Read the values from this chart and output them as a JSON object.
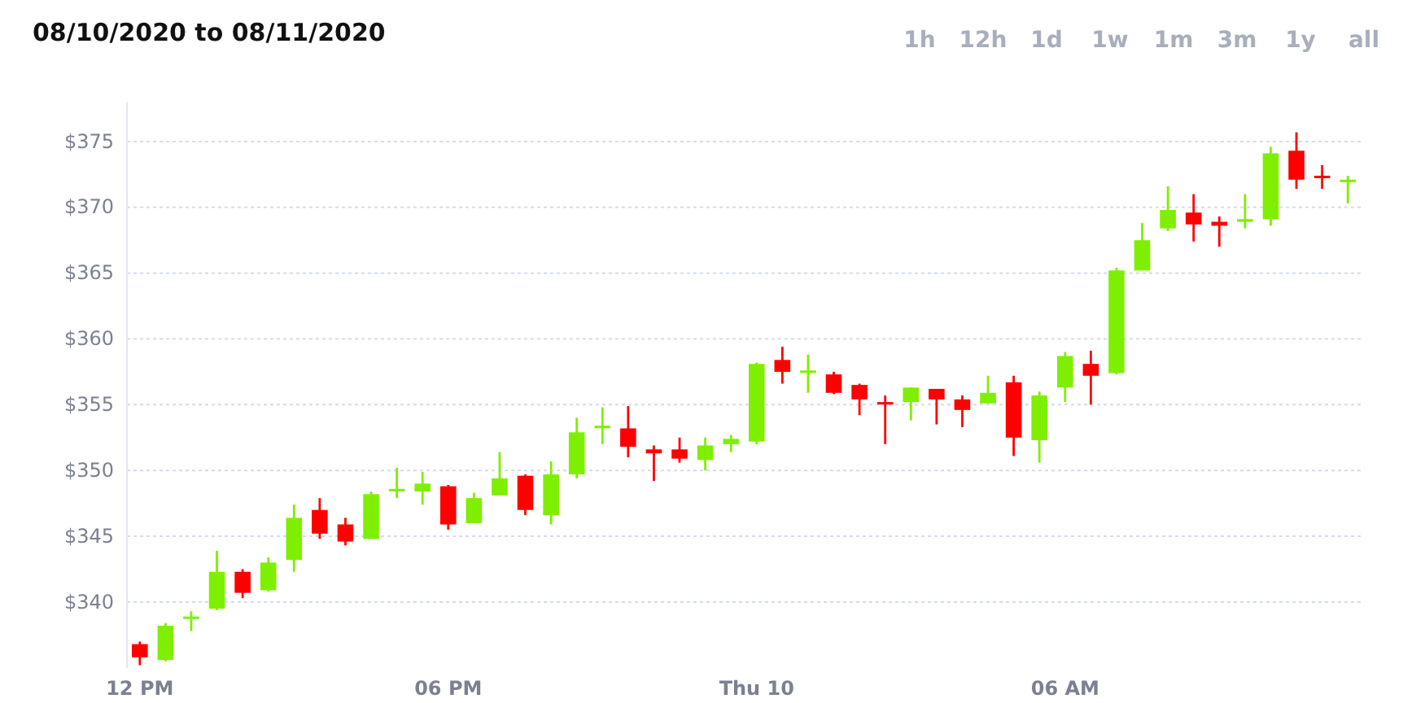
{
  "chart_data": {
    "type": "candlestick",
    "title": "08/10/2020 to 08/11/2020",
    "annotations": [
      "1h",
      "12h",
      "1d",
      "1w",
      "1m",
      "3m",
      "1y",
      "all"
    ],
    "x": [
      "2020-08-10T12:00",
      "2020-08-10T12:30",
      "2020-08-10T13:00",
      "2020-08-10T13:30",
      "2020-08-10T14:00",
      "2020-08-10T14:30",
      "2020-08-10T15:00",
      "2020-08-10T15:30",
      "2020-08-10T16:00",
      "2020-08-10T16:30",
      "2020-08-10T17:00",
      "2020-08-10T17:30",
      "2020-08-10T18:00",
      "2020-08-10T18:30",
      "2020-08-10T19:00",
      "2020-08-10T19:30",
      "2020-08-10T20:00",
      "2020-08-10T20:30",
      "2020-08-10T21:00",
      "2020-08-10T21:30",
      "2020-08-10T22:00",
      "2020-08-10T22:30",
      "2020-08-10T23:00",
      "2020-08-10T23:30",
      "2020-08-11T00:00",
      "2020-08-11T00:30",
      "2020-08-11T01:00",
      "2020-08-11T01:30",
      "2020-08-11T02:00",
      "2020-08-11T02:30",
      "2020-08-11T03:00",
      "2020-08-11T03:30",
      "2020-08-11T04:00",
      "2020-08-11T04:30",
      "2020-08-11T05:00",
      "2020-08-11T05:30",
      "2020-08-11T06:00",
      "2020-08-11T06:30",
      "2020-08-11T07:00",
      "2020-08-11T07:30",
      "2020-08-11T08:00",
      "2020-08-11T08:30",
      "2020-08-11T09:00",
      "2020-08-11T09:30",
      "2020-08-11T10:00",
      "2020-08-11T10:30",
      "2020-08-11T11:00",
      "2020-08-11T11:30"
    ],
    "ohlc": [
      [
        336.8,
        337.0,
        335.2,
        335.8
      ],
      [
        335.6,
        338.4,
        335.5,
        338.2
      ],
      [
        338.8,
        339.3,
        337.8,
        338.9
      ],
      [
        339.5,
        343.9,
        339.4,
        342.3
      ],
      [
        342.3,
        342.5,
        340.3,
        340.7
      ],
      [
        340.9,
        343.4,
        340.8,
        343.0
      ],
      [
        343.2,
        347.4,
        342.3,
        346.4
      ],
      [
        347.0,
        347.9,
        344.8,
        345.2
      ],
      [
        345.9,
        346.4,
        344.3,
        344.6
      ],
      [
        344.8,
        348.4,
        344.8,
        348.2
      ],
      [
        348.5,
        350.2,
        347.9,
        348.6
      ],
      [
        348.4,
        349.9,
        347.4,
        349.0
      ],
      [
        348.8,
        348.9,
        345.5,
        345.9
      ],
      [
        346.0,
        348.3,
        346.0,
        347.9
      ],
      [
        348.1,
        351.4,
        348.1,
        349.4
      ],
      [
        349.6,
        349.7,
        346.6,
        347.0
      ],
      [
        346.6,
        350.7,
        345.9,
        349.7
      ],
      [
        349.7,
        354.0,
        349.4,
        352.9
      ],
      [
        353.3,
        354.8,
        352.0,
        353.4
      ],
      [
        353.2,
        354.9,
        351.0,
        351.8
      ],
      [
        351.6,
        351.9,
        349.2,
        351.3
      ],
      [
        351.6,
        352.5,
        350.6,
        350.9
      ],
      [
        350.8,
        352.5,
        350.0,
        351.9
      ],
      [
        352.0,
        352.7,
        351.4,
        352.4
      ],
      [
        352.2,
        358.2,
        352.0,
        358.1
      ],
      [
        358.4,
        359.4,
        356.6,
        357.5
      ],
      [
        357.5,
        358.8,
        355.9,
        357.6
      ],
      [
        357.3,
        357.5,
        355.8,
        355.9
      ],
      [
        356.5,
        356.6,
        354.2,
        355.4
      ],
      [
        355.2,
        355.7,
        352.0,
        355.1
      ],
      [
        355.2,
        356.3,
        353.8,
        356.3
      ],
      [
        356.2,
        356.2,
        353.5,
        355.4
      ],
      [
        355.4,
        355.7,
        353.3,
        354.6
      ],
      [
        355.1,
        357.2,
        355.1,
        355.9
      ],
      [
        356.7,
        357.2,
        351.1,
        352.5
      ],
      [
        352.3,
        356.0,
        350.6,
        355.7
      ],
      [
        356.3,
        359.0,
        355.2,
        358.7
      ],
      [
        358.1,
        359.1,
        355.0,
        357.2
      ],
      [
        357.4,
        365.4,
        357.3,
        365.2
      ],
      [
        365.2,
        368.8,
        365.2,
        367.5
      ],
      [
        368.4,
        371.6,
        368.2,
        369.8
      ],
      [
        369.6,
        371.0,
        367.4,
        368.7
      ],
      [
        368.9,
        369.3,
        367.0,
        368.6
      ],
      [
        368.9,
        371.0,
        368.4,
        369.1
      ],
      [
        369.1,
        374.6,
        368.6,
        374.1
      ],
      [
        374.3,
        375.7,
        371.4,
        372.1
      ],
      [
        372.4,
        373.2,
        371.4,
        372.3
      ],
      [
        372.0,
        372.4,
        370.3,
        372.1
      ]
    ],
    "colors": [
      "#ff0000",
      "#7fef00",
      "#7fef00",
      "#7fef00",
      "#ff0000",
      "#7fef00",
      "#7fef00",
      "#ff0000",
      "#ff0000",
      "#7fef00",
      "#7fef00",
      "#7fef00",
      "#ff0000",
      "#7fef00",
      "#7fef00",
      "#ff0000",
      "#7fef00",
      "#7fef00",
      "#7fef00",
      "#ff0000",
      "#ff0000",
      "#ff0000",
      "#7fef00",
      "#7fef00",
      "#7fef00",
      "#ff0000",
      "#7fef00",
      "#ff0000",
      "#ff0000",
      "#ff0000",
      "#7fef00",
      "#ff0000",
      "#ff0000",
      "#7fef00",
      "#ff0000",
      "#7fef00",
      "#7fef00",
      "#ff0000",
      "#7fef00",
      "#7fef00",
      "#7fef00",
      "#ff0000",
      "#ff0000",
      "#7fef00",
      "#7fef00",
      "#ff0000",
      "#ff0000",
      "#7fef00"
    ],
    "xlim": [
      "2020-08-10T11:45",
      "2020-08-11T11:45"
    ],
    "xticks": [
      {
        "value": "2020-08-10T12:00",
        "label": "12 PM"
      },
      {
        "value": "2020-08-10T18:00",
        "label": "06 PM"
      },
      {
        "value": "2020-08-11T00:00",
        "label": "Thu 10"
      },
      {
        "value": "2020-08-11T06:00",
        "label": "06 AM"
      }
    ],
    "ylim": [
      335,
      378
    ],
    "yticks": [
      {
        "value": 340,
        "label": "$340"
      },
      {
        "value": 345,
        "label": "$345"
      },
      {
        "value": 350,
        "label": "$350"
      },
      {
        "value": 355,
        "label": "$355"
      },
      {
        "value": 360,
        "label": "$360"
      },
      {
        "value": 365,
        "label": "$365"
      },
      {
        "value": 370,
        "label": "$370"
      },
      {
        "value": 375,
        "label": "$375"
      }
    ],
    "grid": "y"
  }
}
